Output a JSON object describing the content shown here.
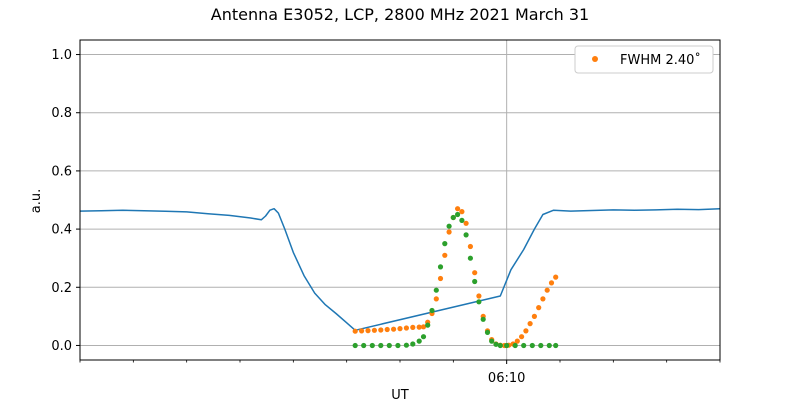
{
  "chart_data": {
    "type": "line",
    "title": "Antenna E3052, LCP, 2800 MHz 2021 March 31",
    "xlabel": "UT",
    "ylabel": "a.u.",
    "ylim": [
      -0.05,
      1.05
    ],
    "xlim": [
      0,
      30
    ],
    "x_unit": "minutes (relative, major tick = 06:10)",
    "x_ticks": [
      {
        "x": 20,
        "label": "06:10"
      }
    ],
    "x_minor_ticks": [
      0,
      2.5,
      5,
      7.5,
      10,
      12.5,
      15,
      17.5,
      22.5,
      25,
      27.5,
      30
    ],
    "y_ticks": [
      0.0,
      0.2,
      0.4,
      0.6,
      0.8,
      1.0
    ],
    "y_tick_labels": [
      "0.0",
      "0.2",
      "0.4",
      "0.6",
      "0.8",
      "1.0"
    ],
    "grid": true,
    "legend": {
      "placement": "top-right",
      "entries": [
        {
          "label": "FWHM 2.40$^\\circ$",
          "display": "FWHM 2.40˚",
          "color": "#ff7f0e"
        }
      ]
    },
    "series": [
      {
        "style": "line",
        "color": "#1f77b4",
        "points": [
          [
            0,
            0.462
          ],
          [
            1,
            0.463
          ],
          [
            2,
            0.465
          ],
          [
            3,
            0.463
          ],
          [
            4,
            0.461
          ],
          [
            5,
            0.459
          ],
          [
            6,
            0.453
          ],
          [
            7,
            0.447
          ],
          [
            8,
            0.438
          ],
          [
            8.5,
            0.432
          ],
          [
            8.7,
            0.445
          ],
          [
            8.9,
            0.465
          ],
          [
            9.1,
            0.47
          ],
          [
            9.3,
            0.455
          ],
          [
            9.6,
            0.4
          ],
          [
            10,
            0.32
          ],
          [
            10.5,
            0.24
          ],
          [
            11,
            0.18
          ],
          [
            11.5,
            0.14
          ],
          [
            12,
            0.11
          ],
          [
            12.5,
            0.078
          ],
          [
            12.9,
            0.052
          ],
          [
            19.7,
            0.17
          ],
          [
            20.2,
            0.26
          ],
          [
            20.8,
            0.33
          ],
          [
            21.3,
            0.4
          ],
          [
            21.7,
            0.45
          ],
          [
            22.2,
            0.465
          ],
          [
            23,
            0.462
          ],
          [
            24,
            0.464
          ],
          [
            25,
            0.466
          ],
          [
            26,
            0.465
          ],
          [
            27,
            0.466
          ],
          [
            28,
            0.468
          ],
          [
            29,
            0.467
          ],
          [
            30,
            0.47
          ]
        ]
      },
      {
        "style": "dots",
        "color": "#ff7f0e",
        "points": [
          [
            12.9,
            0.049
          ],
          [
            13.2,
            0.05
          ],
          [
            13.5,
            0.051
          ],
          [
            13.8,
            0.052
          ],
          [
            14.1,
            0.053
          ],
          [
            14.4,
            0.055
          ],
          [
            14.7,
            0.056
          ],
          [
            15.0,
            0.058
          ],
          [
            15.3,
            0.06
          ],
          [
            15.6,
            0.062
          ],
          [
            15.9,
            0.063
          ],
          [
            16.1,
            0.064
          ],
          [
            16.3,
            0.08
          ],
          [
            16.5,
            0.11
          ],
          [
            16.7,
            0.16
          ],
          [
            16.9,
            0.23
          ],
          [
            17.1,
            0.31
          ],
          [
            17.3,
            0.39
          ],
          [
            17.5,
            0.44
          ],
          [
            17.7,
            0.47
          ],
          [
            17.9,
            0.46
          ],
          [
            18.1,
            0.42
          ],
          [
            18.3,
            0.34
          ],
          [
            18.5,
            0.25
          ],
          [
            18.7,
            0.17
          ],
          [
            18.9,
            0.1
          ],
          [
            19.1,
            0.05
          ],
          [
            19.3,
            0.02
          ],
          [
            19.5,
            0.005
          ],
          [
            19.7,
            0.001
          ],
          [
            19.9,
            0.0
          ],
          [
            20.1,
            0.001
          ],
          [
            20.3,
            0.005
          ],
          [
            20.5,
            0.015
          ],
          [
            20.7,
            0.03
          ],
          [
            20.9,
            0.05
          ],
          [
            21.1,
            0.075
          ],
          [
            21.3,
            0.1
          ],
          [
            21.5,
            0.13
          ],
          [
            21.7,
            0.16
          ],
          [
            21.9,
            0.19
          ],
          [
            22.1,
            0.215
          ],
          [
            22.3,
            0.235
          ]
        ]
      },
      {
        "style": "dots",
        "color": "#2ca02c",
        "points": [
          [
            12.9,
            0.0
          ],
          [
            13.3,
            0.0
          ],
          [
            13.7,
            0.0
          ],
          [
            14.1,
            0.0
          ],
          [
            14.5,
            0.0
          ],
          [
            14.9,
            0.0
          ],
          [
            15.3,
            0.001
          ],
          [
            15.6,
            0.005
          ],
          [
            15.9,
            0.015
          ],
          [
            16.1,
            0.03
          ],
          [
            16.3,
            0.07
          ],
          [
            16.5,
            0.12
          ],
          [
            16.7,
            0.19
          ],
          [
            16.9,
            0.27
          ],
          [
            17.1,
            0.35
          ],
          [
            17.3,
            0.41
          ],
          [
            17.5,
            0.44
          ],
          [
            17.7,
            0.45
          ],
          [
            17.9,
            0.43
          ],
          [
            18.1,
            0.38
          ],
          [
            18.3,
            0.3
          ],
          [
            18.5,
            0.22
          ],
          [
            18.7,
            0.15
          ],
          [
            18.9,
            0.09
          ],
          [
            19.1,
            0.045
          ],
          [
            19.3,
            0.015
          ],
          [
            19.5,
            0.004
          ],
          [
            19.7,
            0.0
          ],
          [
            20.0,
            0.0
          ],
          [
            20.4,
            0.0
          ],
          [
            20.8,
            0.0
          ],
          [
            21.2,
            0.0
          ],
          [
            21.6,
            0.0
          ],
          [
            22.0,
            0.0
          ],
          [
            22.3,
            0.0
          ]
        ]
      }
    ]
  }
}
